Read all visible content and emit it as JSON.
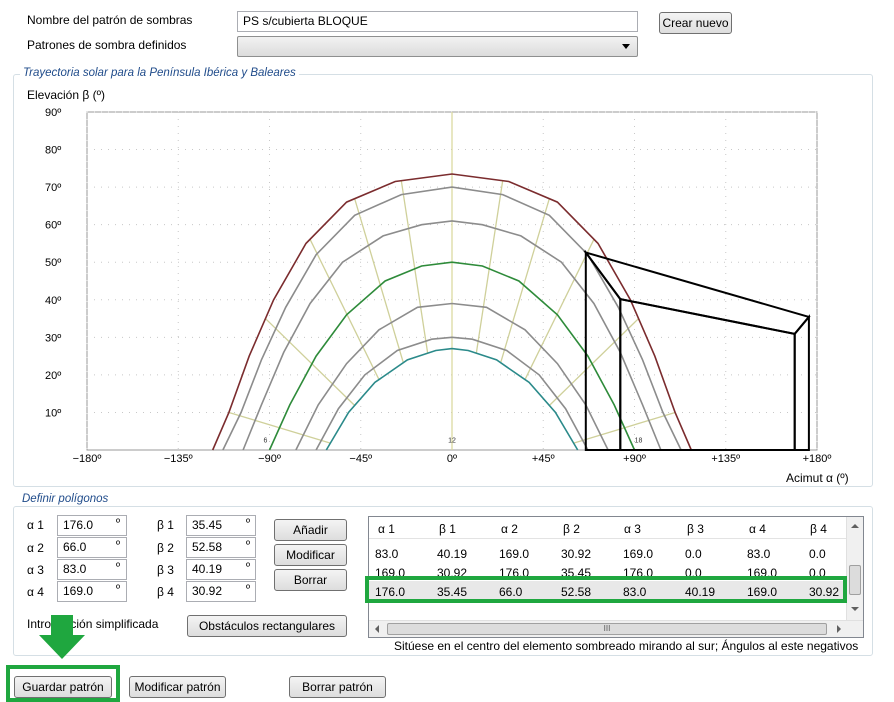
{
  "pattern_name": {
    "label": "Nombre del patrón de sombras",
    "value": "PS s/cubierta BLOQUE"
  },
  "defined_patterns": {
    "label": "Patrones de sombra definidos",
    "value": ""
  },
  "create_button": "Crear nuevo",
  "trajectory_group": {
    "title": "Trayectoria solar para la Península Ibérica y Baleares",
    "y_axis_label": "Elevación β (º)",
    "x_axis_label": "Acimut α (º)"
  },
  "chart_data": {
    "type": "line",
    "title": "Trayectoria solar para la Península Ibérica y Baleares",
    "xlabel": "Acimut α (º)",
    "ylabel": "Elevación β (º)",
    "xlim": [
      -180,
      180
    ],
    "ylim": [
      0,
      90
    ],
    "grid": true,
    "x_ticks": [
      "−180º",
      "−135º",
      "−90º",
      "−45º",
      "0º",
      "+45º",
      "+90º",
      "+135º",
      "+180º"
    ],
    "y_ticks": [
      "10º",
      "20º",
      "30º",
      "40º",
      "50º",
      "60º",
      "70º",
      "80º",
      "90º"
    ],
    "hour_labels": [
      {
        "text": "6",
        "x": -92,
        "y": 2
      },
      {
        "text": "12",
        "x": 0,
        "y": 2
      },
      {
        "text": "18",
        "x": 92,
        "y": 2
      }
    ],
    "series": [
      {
        "color": "#7b2c2e",
        "points": [
          [
            -118,
            0
          ],
          [
            -110,
            10
          ],
          [
            -100,
            25
          ],
          [
            -88,
            40
          ],
          [
            -72,
            55
          ],
          [
            -52,
            66
          ],
          [
            -28,
            71.5
          ],
          [
            0,
            73.5
          ],
          [
            28,
            71.5
          ],
          [
            52,
            66
          ],
          [
            72,
            55
          ],
          [
            88,
            40
          ],
          [
            100,
            25
          ],
          [
            110,
            10
          ],
          [
            118,
            0
          ]
        ]
      },
      {
        "color": "#8c8c8c",
        "points": [
          [
            -113,
            0
          ],
          [
            -104,
            10
          ],
          [
            -94,
            24
          ],
          [
            -82,
            38
          ],
          [
            -67,
            52
          ],
          [
            -48,
            62.5
          ],
          [
            -25,
            68
          ],
          [
            0,
            70
          ],
          [
            25,
            68
          ],
          [
            48,
            62.5
          ],
          [
            67,
            52
          ],
          [
            82,
            38
          ],
          [
            94,
            24
          ],
          [
            104,
            10
          ],
          [
            113,
            0
          ]
        ]
      },
      {
        "color": "#8c8c8c",
        "points": [
          [
            -103,
            0
          ],
          [
            -94,
            12
          ],
          [
            -83,
            26
          ],
          [
            -70,
            39
          ],
          [
            -54,
            50
          ],
          [
            -34,
            57
          ],
          [
            -15,
            60
          ],
          [
            0,
            61
          ],
          [
            15,
            60
          ],
          [
            34,
            57
          ],
          [
            54,
            50
          ],
          [
            70,
            39
          ],
          [
            83,
            26
          ],
          [
            94,
            12
          ],
          [
            103,
            0
          ]
        ]
      },
      {
        "color": "#2e8b3a",
        "points": [
          [
            -90,
            0
          ],
          [
            -80,
            12
          ],
          [
            -67,
            25
          ],
          [
            -52,
            36
          ],
          [
            -33,
            45
          ],
          [
            -15,
            49
          ],
          [
            0,
            50
          ],
          [
            15,
            49
          ],
          [
            33,
            45
          ],
          [
            52,
            36
          ],
          [
            67,
            25
          ],
          [
            80,
            12
          ],
          [
            90,
            0
          ]
        ]
      },
      {
        "color": "#8c8c8c",
        "points": [
          [
            -77,
            0
          ],
          [
            -66,
            12
          ],
          [
            -52,
            23
          ],
          [
            -36,
            32
          ],
          [
            -17,
            38
          ],
          [
            0,
            39
          ],
          [
            17,
            38
          ],
          [
            36,
            32
          ],
          [
            52,
            23
          ],
          [
            66,
            12
          ],
          [
            77,
            0
          ]
        ]
      },
      {
        "color": "#8c8c8c",
        "points": [
          [
            -67,
            0
          ],
          [
            -56,
            11
          ],
          [
            -43,
            20
          ],
          [
            -27,
            26.5
          ],
          [
            -10,
            29.5
          ],
          [
            0,
            30
          ],
          [
            10,
            29.5
          ],
          [
            27,
            26.5
          ],
          [
            43,
            20
          ],
          [
            56,
            11
          ],
          [
            67,
            0
          ]
        ]
      },
      {
        "color": "#2b8a8a",
        "points": [
          [
            -62,
            0
          ],
          [
            -51,
            10
          ],
          [
            -38,
            18
          ],
          [
            -22,
            24
          ],
          [
            -8,
            26.5
          ],
          [
            0,
            27
          ],
          [
            8,
            26.5
          ],
          [
            22,
            24
          ],
          [
            38,
            18
          ],
          [
            51,
            10
          ],
          [
            62,
            0
          ]
        ]
      }
    ],
    "obstacle_polygons": [
      {
        "points": [
          [
            176,
            35.45
          ],
          [
            66,
            52.58
          ],
          [
            83,
            40.19
          ],
          [
            169,
            30.92
          ]
        ]
      },
      {
        "points": [
          [
            83,
            40.19
          ],
          [
            169,
            30.92
          ],
          [
            169,
            0
          ],
          [
            83,
            0
          ]
        ]
      },
      {
        "points": [
          [
            169,
            30.92
          ],
          [
            176,
            35.45
          ],
          [
            176,
            0
          ],
          [
            169,
            0
          ]
        ]
      },
      {
        "points": [
          [
            66,
            52.58
          ],
          [
            83,
            40.19
          ],
          [
            83,
            0
          ],
          [
            66,
            0
          ]
        ]
      }
    ]
  },
  "polygons_group": {
    "title": "Definir polígonos",
    "fields": {
      "a1": {
        "label": "α 1",
        "value": "176.0"
      },
      "a2": {
        "label": "α 2",
        "value": "66.0"
      },
      "a3": {
        "label": "α 3",
        "value": "83.0"
      },
      "a4": {
        "label": "α 4",
        "value": "169.0"
      },
      "b1": {
        "label": "β 1",
        "value": "35.45"
      },
      "b2": {
        "label": "β 2",
        "value": "52.58"
      },
      "b3": {
        "label": "β 3",
        "value": "40.19"
      },
      "b4": {
        "label": "β 4",
        "value": "30.92"
      }
    },
    "degree_symbol": "º",
    "add_button": "Añadir",
    "modify_button": "Modificar",
    "delete_button": "Borrar",
    "simplified_label": "Introducción simplificada",
    "rect_obstacles_button": "Obstáculos rectangulares",
    "hint": "Sitúese en el centro del elemento sombreado mirando al sur; Ángulos al este negativos",
    "table": {
      "columns": [
        "α 1",
        "β 1",
        "α 2",
        "β 2",
        "α 3",
        "β 3",
        "α 4",
        "β 4"
      ],
      "rows": [
        [
          "83.0",
          "40.19",
          "169.0",
          "30.92",
          "169.0",
          "0.0",
          "83.0",
          "0.0"
        ],
        [
          "169.0",
          "30.92",
          "176.0",
          "35.45",
          "176.0",
          "0.0",
          "169.0",
          "0.0"
        ],
        [
          "176.0",
          "35.45",
          "66.0",
          "52.58",
          "83.0",
          "40.19",
          "169.0",
          "30.92"
        ]
      ],
      "hscroll_grip": "III"
    }
  },
  "bottom_buttons": {
    "save": "Guardar patrón",
    "modify": "Modificar patrón",
    "delete": "Borrar patrón"
  },
  "colors": {
    "highlight": "#1fa73f",
    "group_title": "#1f4b8a"
  }
}
